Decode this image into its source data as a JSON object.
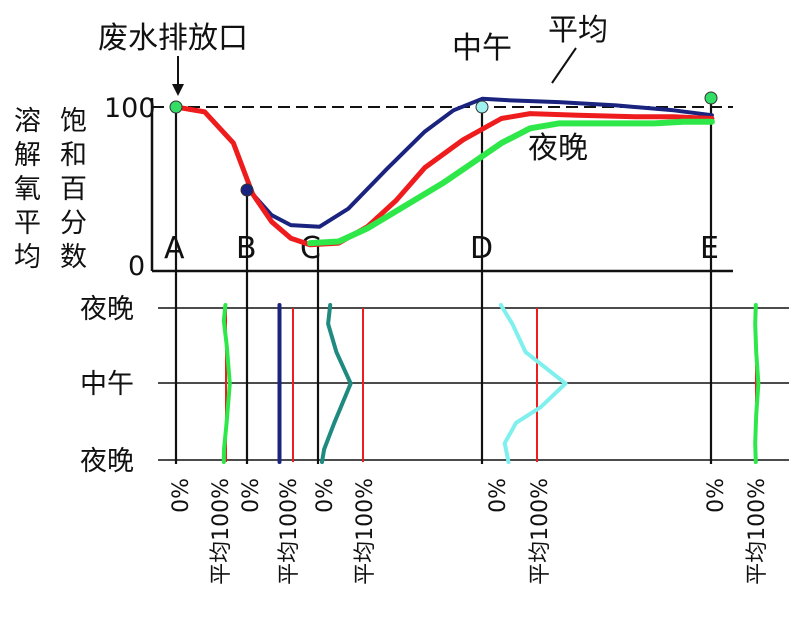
{
  "chart_data": [
    {
      "type": "line",
      "title": "",
      "ylabel_col1": "溶解氧平均",
      "ylabel_col2": "饱和百分数",
      "y_ticks": [
        "0",
        "100"
      ],
      "ylim": [
        0,
        100
      ],
      "reference_line": {
        "value": 100,
        "style": "dashed"
      },
      "outfall_label": "废水排放口",
      "stations": [
        "A",
        "B",
        "C",
        "D",
        "E"
      ],
      "series": [
        {
          "name": "中午",
          "color": "#1a237e",
          "points": [
            [
              0,
              100
            ],
            [
              3,
              97
            ],
            [
              6,
              78
            ],
            [
              8,
              47
            ],
            [
              10,
              34
            ],
            [
              12,
              28
            ],
            [
              15,
              27
            ],
            [
              18,
              38
            ],
            [
              22,
              62
            ],
            [
              26,
              85
            ],
            [
              29,
              98
            ],
            [
              32,
              105
            ],
            [
              35,
              104
            ],
            [
              40,
              103
            ],
            [
              46,
              101
            ],
            [
              52,
              98
            ],
            [
              56,
              95
            ]
          ]
        },
        {
          "name": "平均",
          "color": "#ee1c1c",
          "points": [
            [
              0,
              100
            ],
            [
              3,
              97
            ],
            [
              6,
              78
            ],
            [
              8,
              47
            ],
            [
              10,
              30
            ],
            [
              12,
              20
            ],
            [
              14,
              16
            ],
            [
              17,
              17
            ],
            [
              20,
              27
            ],
            [
              23,
              43
            ],
            [
              26,
              63
            ],
            [
              30,
              80
            ],
            [
              34,
              93
            ],
            [
              37,
              96
            ],
            [
              42,
              95
            ],
            [
              48,
              94
            ],
            [
              52,
              94
            ],
            [
              56,
              93
            ]
          ]
        },
        {
          "name": "夜晚",
          "color": "#2ee84a",
          "points": [
            [
              14,
              17
            ],
            [
              17,
              18
            ],
            [
              20,
              26
            ],
            [
              24,
              40
            ],
            [
              28,
              54
            ],
            [
              31,
              66
            ],
            [
              34,
              78
            ],
            [
              37,
              87
            ],
            [
              40,
              90
            ],
            [
              45,
              90
            ],
            [
              50,
              90
            ],
            [
              53,
              91
            ],
            [
              56,
              91
            ]
          ]
        }
      ],
      "series_labels": [
        "中午",
        "平均",
        "夜晚"
      ]
    },
    {
      "type": "line",
      "title": "",
      "y_categories": [
        "夜晚",
        "中午",
        "夜晚"
      ],
      "profile_stations": [
        "A",
        "B",
        "C",
        "D",
        "E"
      ],
      "scale_min_label": "0%",
      "scale_max_label": "平均100%",
      "panels": [
        {
          "station": "A",
          "color": "#2ee84a",
          "profile": [
            [
              0.95,
              0
            ],
            [
              0.8,
              0.1
            ],
            [
              1.05,
              0.25
            ],
            [
              1.35,
              0.5
            ],
            [
              1.05,
              0.75
            ],
            [
              0.82,
              0.92
            ],
            [
              0.8,
              1.0
            ]
          ]
        },
        {
          "station": "B",
          "color": "#1a237e",
          "profile": [
            [
              0.25,
              0
            ],
            [
              0.25,
              1.0
            ]
          ]
        },
        {
          "station": "C",
          "color": "#1e8a80",
          "profile": [
            [
              0.2,
              0
            ],
            [
              0.15,
              0.12
            ],
            [
              0.35,
              0.3
            ],
            [
              0.7,
              0.5
            ],
            [
              0.3,
              0.75
            ],
            [
              0.05,
              0.92
            ],
            [
              0.0,
              1.0
            ]
          ]
        },
        {
          "station": "D",
          "color": "#7ff0ee",
          "profile": [
            [
              0.05,
              0
            ],
            [
              0.35,
              0.12
            ],
            [
              0.7,
              0.3
            ],
            [
              1.75,
              0.5
            ],
            [
              1.1,
              0.65
            ],
            [
              0.45,
              0.75
            ],
            [
              0.15,
              0.88
            ],
            [
              0.25,
              1.0
            ]
          ]
        },
        {
          "station": "E",
          "color": "#2ee84a",
          "profile": [
            [
              0.95,
              0
            ],
            [
              0.8,
              0.12
            ],
            [
              1.05,
              0.3
            ],
            [
              1.6,
              0.5
            ],
            [
              1.05,
              0.7
            ],
            [
              0.8,
              0.88
            ],
            [
              0.95,
              1.0
            ]
          ]
        }
      ]
    }
  ]
}
